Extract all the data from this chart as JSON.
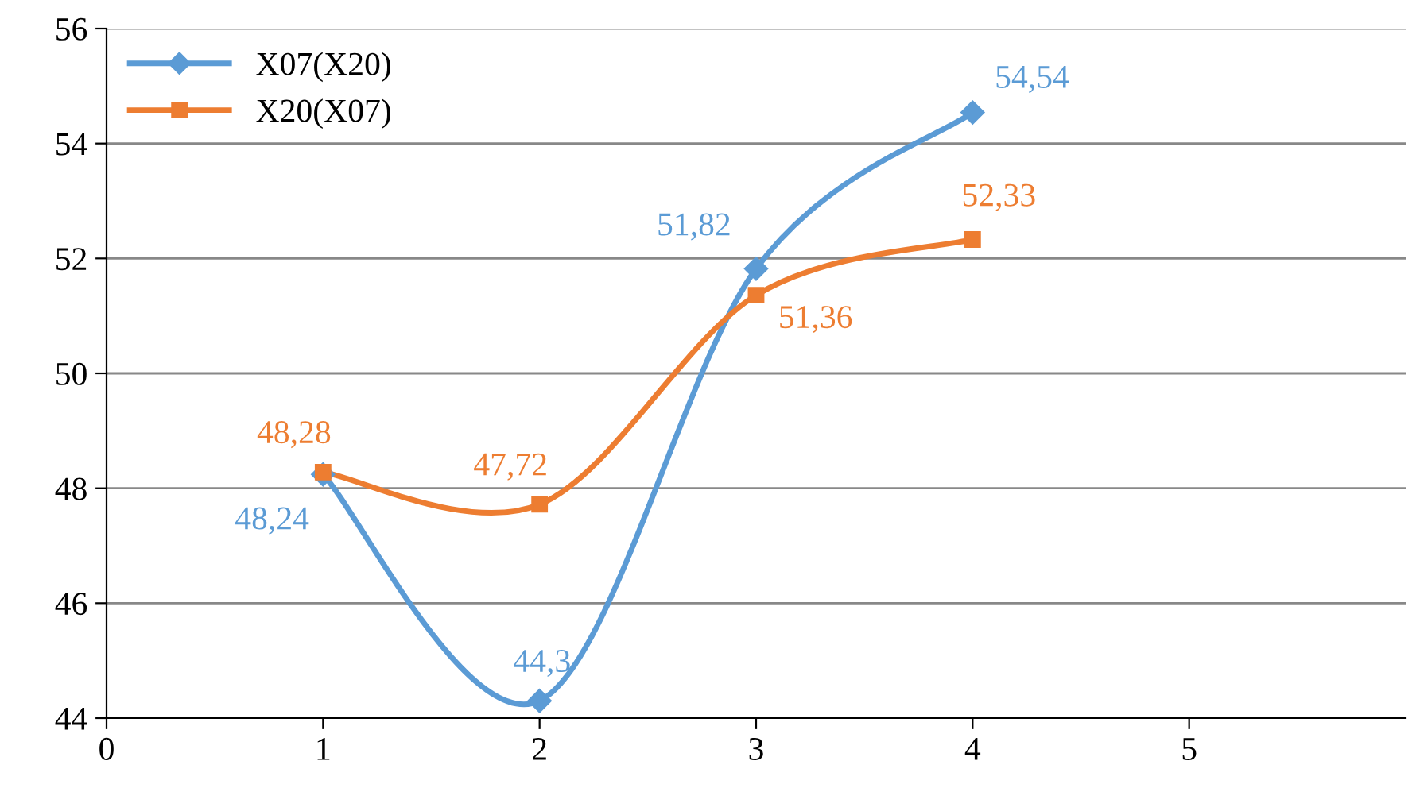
{
  "chart_data": {
    "type": "line",
    "x": [
      1,
      2,
      3,
      4
    ],
    "series": [
      {
        "name": "X07(X20)",
        "color": "#5b9bd5",
        "marker": "diamond",
        "values": [
          48.24,
          44.3,
          51.82,
          54.54
        ],
        "value_labels": [
          "48,24",
          "44,3",
          "51,82",
          "54,54"
        ]
      },
      {
        "name": "X20(X07)",
        "color": "#ed7d31",
        "marker": "square",
        "values": [
          48.28,
          47.72,
          51.36,
          52.33
        ],
        "value_labels": [
          "48,28",
          "47,72",
          "51,36",
          "52,33"
        ]
      }
    ],
    "xlim": [
      0,
      6
    ],
    "xticks": [
      0,
      1,
      2,
      3,
      4,
      5
    ],
    "ylim": [
      44,
      56
    ],
    "yticks": [
      44,
      46,
      48,
      50,
      52,
      54,
      56
    ],
    "grid": "y",
    "legend": "top left",
    "line_style": "solid"
  }
}
